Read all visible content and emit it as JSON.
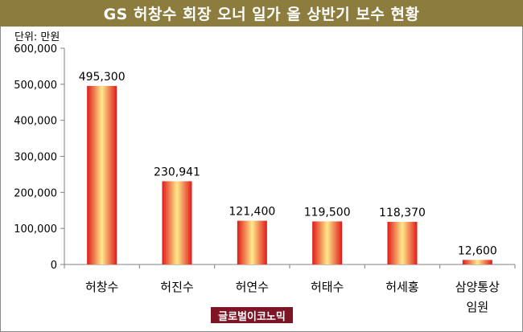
{
  "title": "GS 허창수 회장 오너 일가 올 상반기 보수 현황",
  "unit_label": "단위: 만원",
  "watermark": "글로벌이코노믹",
  "colors": {
    "title_bg": "#8c7d3e",
    "bar_edge": "#e01a1a",
    "bar_center": "#ffe98a",
    "watermark_bg": "#7d1526"
  },
  "chart_data": {
    "type": "bar",
    "title": "GS 허창수 회장 오너 일가 올 상반기 보수 현황",
    "ylabel": "",
    "xlabel": "",
    "categories": [
      [
        "허창수"
      ],
      [
        "허진수"
      ],
      [
        "허연수"
      ],
      [
        "허태수"
      ],
      [
        "허세홍"
      ],
      [
        "삼양통상",
        "임원"
      ]
    ],
    "values": [
      495300,
      230941,
      121400,
      119500,
      118370,
      12600
    ],
    "value_labels": [
      "495,300",
      "230,941",
      "121,400",
      "119,500",
      "118,370",
      "12,600"
    ],
    "ylim": [
      0,
      600000
    ],
    "yticks": [
      0,
      100000,
      200000,
      300000,
      400000,
      500000,
      600000
    ],
    "ytick_labels": [
      "0",
      "100,000",
      "200,000",
      "300,000",
      "400,000",
      "500,000",
      "600,000"
    ],
    "grid": false,
    "legend": "none"
  }
}
